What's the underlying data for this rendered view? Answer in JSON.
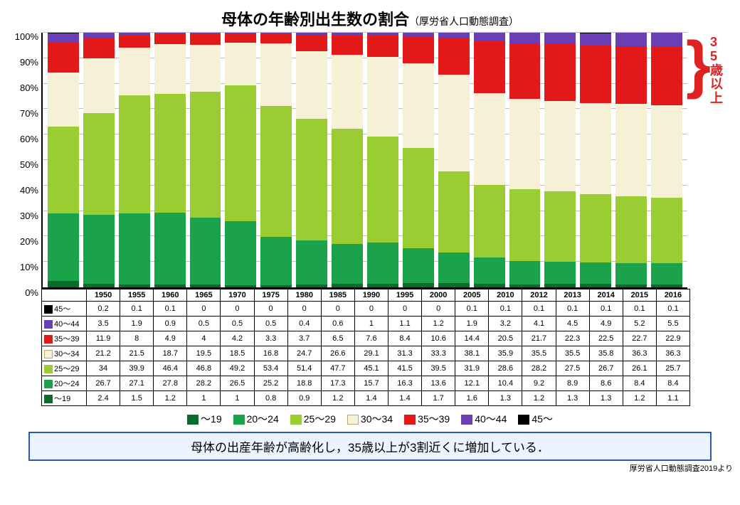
{
  "title": "母体の年齢別出生数の割合",
  "subtitle": "（厚労省人口動態調査）",
  "annotation": "35歳以上",
  "note": "母体の出産年齢が高齢化し，35歳以上が3割近くに増加している．",
  "source": "厚労省人口動態調査2019より",
  "chart": {
    "type": "stacked-bar-100",
    "ylim": [
      0,
      100
    ],
    "ytick_step": 10,
    "y_tick_suffix": "%",
    "grid_color": "#bfbfbf",
    "axis_color": "#000000",
    "background": "#ffffff",
    "years": [
      "1950",
      "1955",
      "1960",
      "1965",
      "1970",
      "1975",
      "1980",
      "1985",
      "1990",
      "1995",
      "2000",
      "2005",
      "2010",
      "2012",
      "2013",
      "2014",
      "2015",
      "2016"
    ],
    "series": [
      {
        "key": "u19",
        "label": "～19",
        "color": "#0b6b2b",
        "swatch_border": "#0b6b2b"
      },
      {
        "key": "20_24",
        "label": "20～24",
        "color": "#1aa34a",
        "swatch_border": "#1aa34a"
      },
      {
        "key": "25_29",
        "label": "25～29",
        "color": "#9acd32",
        "swatch_border": "#9acd32"
      },
      {
        "key": "30_34",
        "label": "30～34",
        "color": "#f6f0d6",
        "swatch_border": "#b8a96a"
      },
      {
        "key": "35_39",
        "label": "35～39",
        "color": "#e31818",
        "swatch_border": "#e31818"
      },
      {
        "key": "40_44",
        "label": "40～44",
        "color": "#6a3fb5",
        "swatch_border": "#6a3fb5"
      },
      {
        "key": "45p",
        "label": "45～",
        "color": "#000000",
        "swatch_border": "#000000"
      }
    ],
    "table_row_order": [
      "45p",
      "40_44",
      "35_39",
      "30_34",
      "25_29",
      "20_24",
      "u19"
    ],
    "data": {
      "u19": [
        2.4,
        1.5,
        1.2,
        1,
        1,
        0.8,
        0.9,
        1.2,
        1.4,
        1.4,
        1.7,
        1.6,
        1.3,
        1.2,
        1.3,
        1.3,
        1.2,
        1.1
      ],
      "20_24": [
        26.7,
        27.1,
        27.8,
        28.2,
        26.5,
        25.2,
        18.8,
        17.3,
        15.7,
        16.3,
        13.6,
        12.1,
        10.4,
        9.2,
        8.9,
        8.6,
        8.4,
        8.4
      ],
      "25_29": [
        34,
        39.9,
        46.4,
        46.8,
        49.2,
        53.4,
        51.4,
        47.7,
        45.1,
        41.5,
        39.5,
        31.9,
        28.6,
        28.2,
        27.5,
        26.7,
        26.1,
        25.7
      ],
      "30_34": [
        21.2,
        21.5,
        18.7,
        19.5,
        18.5,
        16.8,
        24.7,
        26.6,
        29.1,
        31.3,
        33.3,
        38.1,
        35.9,
        35.5,
        35.5,
        35.8,
        36.3,
        36.3
      ],
      "35_39": [
        11.9,
        8,
        4.9,
        4,
        4.2,
        3.3,
        3.7,
        6.5,
        7.6,
        8.4,
        10.6,
        14.4,
        20.5,
        21.7,
        22.3,
        22.5,
        22.7,
        22.9
      ],
      "40_44": [
        3.5,
        1.9,
        0.9,
        0.5,
        0.5,
        0.5,
        0.4,
        0.6,
        1,
        1.1,
        1.2,
        1.9,
        3.2,
        4.1,
        4.5,
        4.9,
        5.2,
        5.5
      ],
      "45p": [
        0.2,
        0.1,
        0.1,
        0,
        0,
        0,
        0,
        0,
        0,
        0,
        0,
        0.1,
        0.1,
        0.1,
        0.1,
        0.1,
        0.1,
        0.1
      ]
    }
  }
}
